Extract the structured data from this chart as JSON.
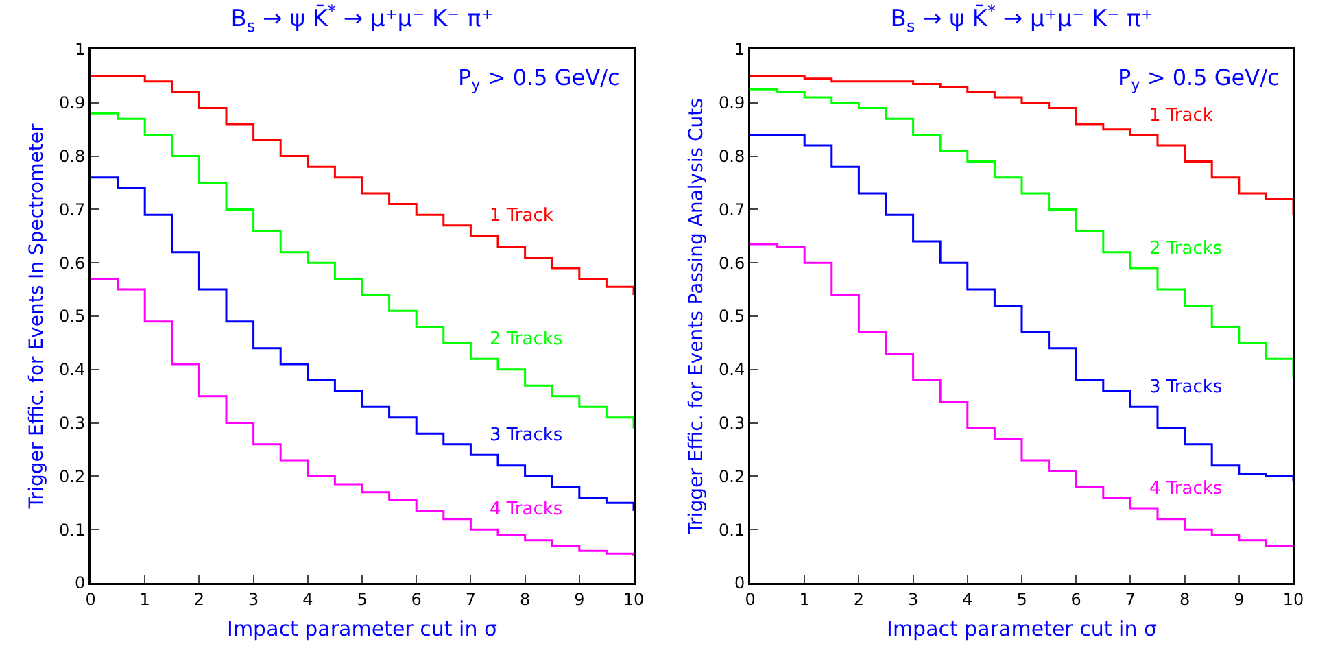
{
  "chart_data": [
    {
      "type": "step",
      "title": "B$_{s}$ → ψ K̄$^{*}$ → μ⁺μ⁻ K⁻ π⁺",
      "xlabel": "Impact parameter cut in σ",
      "ylabel": "Trigger Effic. for Events In Spectrometer",
      "annotations": [
        "P$_{y}$ > 0.5 GeV/c"
      ],
      "x": [
        0,
        0.5,
        1,
        1.5,
        2,
        2.5,
        3,
        3.5,
        4,
        4.5,
        5,
        5.5,
        6,
        6.5,
        7,
        7.5,
        8,
        8.5,
        9,
        9.5,
        10
      ],
      "xlim": [
        0,
        10
      ],
      "xticks": [
        0,
        1,
        2,
        3,
        4,
        5,
        6,
        7,
        8,
        9,
        10
      ],
      "ylim": [
        0,
        1
      ],
      "yticks": [
        0,
        0.1,
        0.2,
        0.3,
        0.4,
        0.5,
        0.6,
        0.7,
        0.8,
        0.9,
        1
      ],
      "grid": false,
      "legend": false,
      "series": [
        {
          "name": "1 Track",
          "color": "#ff0000",
          "values": [
            0.95,
            0.95,
            0.94,
            0.92,
            0.89,
            0.86,
            0.83,
            0.8,
            0.78,
            0.76,
            0.73,
            0.71,
            0.69,
            0.67,
            0.65,
            0.63,
            0.61,
            0.59,
            0.57,
            0.555,
            0.54
          ]
        },
        {
          "name": "2 Tracks",
          "color": "#00ff00",
          "values": [
            0.88,
            0.87,
            0.84,
            0.8,
            0.75,
            0.7,
            0.66,
            0.62,
            0.6,
            0.57,
            0.54,
            0.51,
            0.48,
            0.45,
            0.42,
            0.4,
            0.37,
            0.35,
            0.33,
            0.31,
            0.29
          ]
        },
        {
          "name": "3 Tracks",
          "color": "#0000ff",
          "values": [
            0.76,
            0.74,
            0.69,
            0.62,
            0.55,
            0.49,
            0.44,
            0.41,
            0.38,
            0.36,
            0.33,
            0.31,
            0.28,
            0.26,
            0.24,
            0.22,
            0.2,
            0.18,
            0.16,
            0.15,
            0.135
          ]
        },
        {
          "name": "4 Tracks",
          "color": "#ff00ff",
          "values": [
            0.57,
            0.55,
            0.49,
            0.41,
            0.35,
            0.3,
            0.26,
            0.23,
            0.2,
            0.185,
            0.17,
            0.155,
            0.135,
            0.12,
            0.1,
            0.09,
            0.08,
            0.07,
            0.06,
            0.055,
            0.05
          ]
        }
      ]
    },
    {
      "type": "step",
      "title": "B$_{s}$ → ψ K̄$^{*}$ → μ⁺μ⁻ K⁻ π⁺",
      "xlabel": "Impact parameter cut in σ",
      "ylabel": "Trigger Effic. for Events Passing Analysis Cuts",
      "annotations": [
        "P$_{y}$ > 0.5 GeV/c"
      ],
      "x": [
        0,
        0.5,
        1,
        1.5,
        2,
        2.5,
        3,
        3.5,
        4,
        4.5,
        5,
        5.5,
        6,
        6.5,
        7,
        7.5,
        8,
        8.5,
        9,
        9.5,
        10
      ],
      "xlim": [
        0,
        10
      ],
      "xticks": [
        0,
        1,
        2,
        3,
        4,
        5,
        6,
        7,
        8,
        9,
        10
      ],
      "ylim": [
        0,
        1
      ],
      "yticks": [
        0,
        0.1,
        0.2,
        0.3,
        0.4,
        0.5,
        0.6,
        0.7,
        0.8,
        0.9,
        1
      ],
      "grid": false,
      "legend": false,
      "series": [
        {
          "name": "1 Track",
          "color": "#ff0000",
          "values": [
            0.95,
            0.95,
            0.945,
            0.94,
            0.94,
            0.94,
            0.935,
            0.93,
            0.92,
            0.91,
            0.9,
            0.89,
            0.86,
            0.85,
            0.84,
            0.82,
            0.79,
            0.76,
            0.73,
            0.72,
            0.69
          ]
        },
        {
          "name": "2 Tracks",
          "color": "#00ff00",
          "values": [
            0.925,
            0.92,
            0.91,
            0.9,
            0.89,
            0.87,
            0.84,
            0.81,
            0.79,
            0.76,
            0.73,
            0.7,
            0.66,
            0.62,
            0.59,
            0.55,
            0.52,
            0.48,
            0.45,
            0.42,
            0.385
          ]
        },
        {
          "name": "3 Tracks",
          "color": "#0000ff",
          "values": [
            0.84,
            0.84,
            0.82,
            0.78,
            0.73,
            0.69,
            0.64,
            0.6,
            0.55,
            0.52,
            0.47,
            0.44,
            0.38,
            0.36,
            0.33,
            0.29,
            0.26,
            0.22,
            0.205,
            0.2,
            0.19
          ]
        },
        {
          "name": "4 Tracks",
          "color": "#ff00ff",
          "values": [
            0.635,
            0.63,
            0.6,
            0.54,
            0.47,
            0.43,
            0.38,
            0.34,
            0.29,
            0.27,
            0.23,
            0.21,
            0.18,
            0.16,
            0.14,
            0.12,
            0.1,
            0.09,
            0.08,
            0.07,
            0.07
          ]
        }
      ]
    }
  ]
}
